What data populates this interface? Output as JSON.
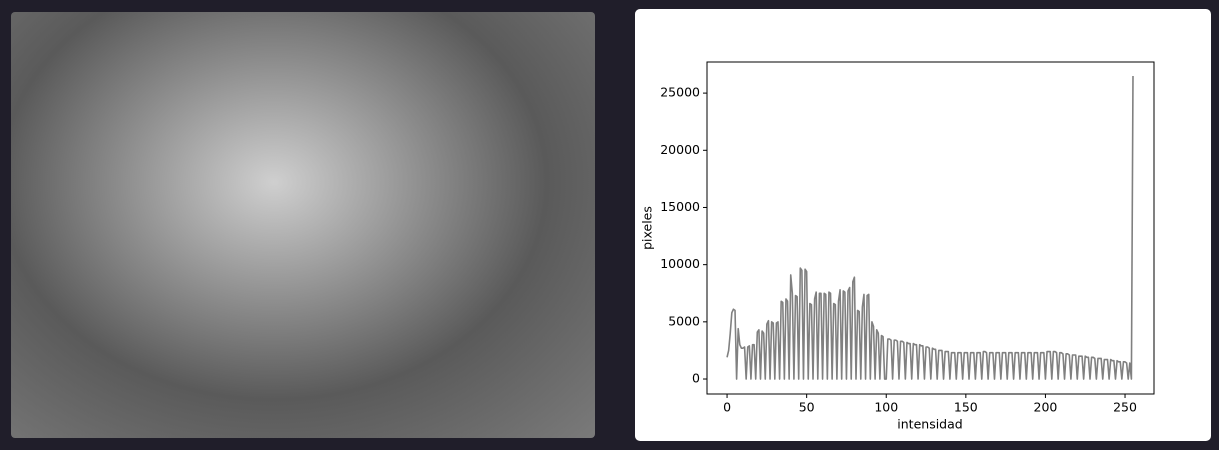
{
  "chart_data": {
    "type": "line",
    "xlabel": "intensidad",
    "ylabel": "pixeles",
    "color": "#808080",
    "xlim": [
      -12.6,
      268.2
    ],
    "ylim": [
      -1310,
      27720
    ],
    "xticks": [
      0,
      50,
      100,
      150,
      200,
      250
    ],
    "yticks": [
      0,
      5000,
      10000,
      15000,
      20000,
      25000
    ],
    "x": [
      0,
      1,
      2,
      3,
      4,
      5,
      6,
      7,
      8,
      9,
      10,
      11,
      12,
      13,
      14,
      15,
      16,
      17,
      18,
      19,
      20,
      21,
      22,
      23,
      24,
      25,
      26,
      27,
      28,
      29,
      30,
      31,
      32,
      33,
      34,
      35,
      36,
      37,
      38,
      39,
      40,
      41,
      42,
      43,
      44,
      45,
      46,
      47,
      48,
      49,
      50,
      51,
      52,
      53,
      54,
      55,
      56,
      57,
      58,
      59,
      60,
      61,
      62,
      63,
      64,
      65,
      66,
      67,
      68,
      69,
      70,
      71,
      72,
      73,
      74,
      75,
      76,
      77,
      78,
      79,
      80,
      81,
      82,
      83,
      84,
      85,
      86,
      87,
      88,
      89,
      90,
      91,
      92,
      93,
      94,
      95,
      96,
      97,
      98,
      99,
      100,
      101,
      102,
      103,
      104,
      105,
      106,
      107,
      108,
      109,
      110,
      111,
      112,
      113,
      114,
      115,
      116,
      117,
      118,
      119,
      120,
      121,
      122,
      123,
      124,
      125,
      126,
      127,
      128,
      129,
      130,
      131,
      132,
      133,
      134,
      135,
      136,
      137,
      138,
      139,
      140,
      141,
      142,
      143,
      144,
      145,
      146,
      147,
      148,
      149,
      150,
      151,
      152,
      153,
      154,
      155,
      156,
      157,
      158,
      159,
      160,
      161,
      162,
      163,
      164,
      165,
      166,
      167,
      168,
      169,
      170,
      171,
      172,
      173,
      174,
      175,
      176,
      177,
      178,
      179,
      180,
      181,
      182,
      183,
      184,
      185,
      186,
      187,
      188,
      189,
      190,
      191,
      192,
      193,
      194,
      195,
      196,
      197,
      198,
      199,
      200,
      201,
      202,
      203,
      204,
      205,
      206,
      207,
      208,
      209,
      210,
      211,
      212,
      213,
      214,
      215,
      216,
      217,
      218,
      219,
      220,
      221,
      222,
      223,
      224,
      225,
      226,
      227,
      228,
      229,
      230,
      231,
      232,
      233,
      234,
      235,
      236,
      237,
      238,
      239,
      240,
      241,
      242,
      243,
      244,
      245,
      246,
      247,
      248,
      249,
      250,
      251,
      252,
      253,
      254,
      255
    ],
    "values": [
      1900,
      2500,
      4000,
      5800,
      6100,
      6000,
      0,
      4400,
      3000,
      2700,
      2700,
      2800,
      0,
      2800,
      2900,
      0,
      3000,
      3000,
      0,
      4100,
      4300,
      0,
      4200,
      4000,
      0,
      4800,
      5100,
      0,
      5000,
      4900,
      0,
      4900,
      5000,
      0,
      6800,
      6700,
      0,
      7000,
      6800,
      0,
      9100,
      7500,
      0,
      7300,
      7200,
      0,
      9700,
      9500,
      0,
      9600,
      9400,
      0,
      6600,
      6500,
      0,
      7000,
      7600,
      0,
      7500,
      7500,
      0,
      7500,
      7400,
      0,
      7600,
      7500,
      0,
      6600,
      6500,
      0,
      6800,
      7800,
      0,
      7700,
      7600,
      0,
      7700,
      8000,
      0,
      8500,
      8900,
      0,
      6000,
      5900,
      0,
      6300,
      7400,
      0,
      7300,
      7400,
      0,
      5000,
      4600,
      0,
      4300,
      4000,
      0,
      3800,
      3700,
      0,
      0,
      3500,
      3500,
      3400,
      0,
      3400,
      3400,
      3300,
      0,
      3300,
      3300,
      3200,
      0,
      3200,
      3100,
      3100,
      0,
      3100,
      3000,
      3000,
      0,
      3000,
      2900,
      2900,
      0,
      2800,
      2800,
      2700,
      0,
      2700,
      2600,
      2600,
      0,
      2500,
      2500,
      2500,
      0,
      2400,
      2400,
      2400,
      0,
      2300,
      2300,
      2300,
      0,
      2300,
      2300,
      2300,
      0,
      2300,
      2300,
      2300,
      0,
      2300,
      2300,
      2300,
      0,
      2300,
      2300,
      2300,
      0,
      2400,
      2400,
      2300,
      0,
      2300,
      2300,
      2300,
      0,
      2300,
      2300,
      2300,
      0,
      2300,
      2300,
      2300,
      0,
      2300,
      2300,
      2300,
      0,
      2300,
      2300,
      2300,
      0,
      2300,
      2300,
      2300,
      0,
      2300,
      2300,
      2300,
      0,
      2300,
      2300,
      2300,
      0,
      2300,
      2300,
      2300,
      0,
      2400,
      2400,
      2400,
      0,
      2400,
      2400,
      2300,
      0,
      2300,
      2300,
      2200,
      0,
      2200,
      2200,
      2100,
      0,
      2100,
      2100,
      2100,
      0,
      2000,
      2000,
      2000,
      0,
      2000,
      1900,
      1900,
      0,
      1900,
      1900,
      1800,
      0,
      1800,
      1800,
      1800,
      0,
      1700,
      1700,
      1700,
      0,
      1700,
      1600,
      1600,
      0,
      1600,
      1500,
      1500,
      0,
      1500,
      1500,
      1400,
      0,
      1400,
      0,
      26500
    ]
  }
}
